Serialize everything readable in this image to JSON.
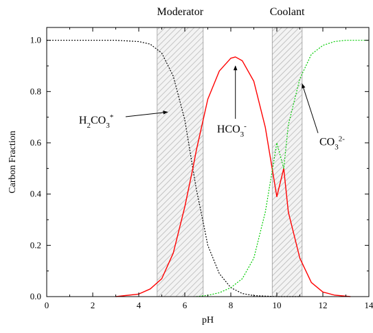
{
  "chart_data": {
    "type": "line",
    "xlabel": "pH",
    "ylabel": "Carbon Fraction",
    "xlim": [
      0,
      14
    ],
    "ylim": [
      0,
      1.05
    ],
    "x_ticks": [
      "0",
      "2",
      "4",
      "6",
      "8",
      "10",
      "12",
      "14"
    ],
    "y_ticks": [
      "0.0",
      "0.2",
      "0.4",
      "0.6",
      "0.8",
      "1.0"
    ],
    "grid": false,
    "colors": {
      "h2co3": "#000000",
      "hco3": "#ff0000",
      "co3": "#00cc00",
      "band_hatch": "#b0b0b0"
    },
    "bands": [
      {
        "label": "Moderator",
        "x_range": [
          4.8,
          6.8
        ]
      },
      {
        "label": "Coolant",
        "x_range": [
          9.8,
          11.1
        ]
      }
    ],
    "series": [
      {
        "style": "dotted",
        "x": [
          0,
          2,
          3,
          4,
          4.5,
          5,
          5.5,
          6,
          6.35,
          6.5,
          6.8,
          7,
          7.5,
          8,
          8.5,
          9,
          10,
          11
        ],
        "y": [
          1.0,
          1.0,
          1.0,
          0.995,
          0.985,
          0.95,
          0.86,
          0.69,
          0.5,
          0.42,
          0.29,
          0.2,
          0.09,
          0.035,
          0.012,
          0.004,
          0.0,
          0.0
        ]
      },
      {
        "style": "solid",
        "x": [
          3,
          4,
          4.5,
          5,
          5.5,
          6,
          6.35,
          6.5,
          7,
          7.5,
          8,
          8.2,
          8.5,
          9,
          9.5,
          10,
          10.3,
          10.5,
          11,
          11.5,
          12,
          12.5,
          13.2
        ],
        "y": [
          0.0,
          0.01,
          0.03,
          0.07,
          0.17,
          0.35,
          0.5,
          0.57,
          0.77,
          0.88,
          0.93,
          0.935,
          0.92,
          0.84,
          0.66,
          0.39,
          0.5,
          0.33,
          0.15,
          0.055,
          0.018,
          0.006,
          0.0
        ]
      },
      {
        "style": "dashdot",
        "x": [
          6.5,
          7,
          7.5,
          8,
          8.5,
          9,
          9.5,
          10,
          10.3,
          10.5,
          11,
          11.5,
          12,
          12.5,
          13,
          14
        ],
        "y": [
          0.0,
          0.005,
          0.015,
          0.035,
          0.07,
          0.15,
          0.33,
          0.6,
          0.5,
          0.67,
          0.85,
          0.945,
          0.98,
          0.995,
          1.0,
          1.0
        ]
      }
    ],
    "annotations": [
      {
        "base": "H",
        "sub": "2",
        "mid": "CO",
        "sub2": "3",
        "sup": "*",
        "anchor_x": 1.4,
        "anchor_y": 0.675,
        "arrow_to": [
          5.25,
          0.72
        ]
      },
      {
        "base": "HCO",
        "sub": "3",
        "sup": "-",
        "anchor_x": 7.4,
        "anchor_y": 0.64,
        "arrow_to": [
          8.2,
          0.9
        ]
      },
      {
        "base": "CO",
        "sub": "3",
        "sup": "2-",
        "anchor_x": 11.85,
        "anchor_y": 0.59,
        "arrow_to": [
          11.1,
          0.83
        ]
      }
    ]
  }
}
